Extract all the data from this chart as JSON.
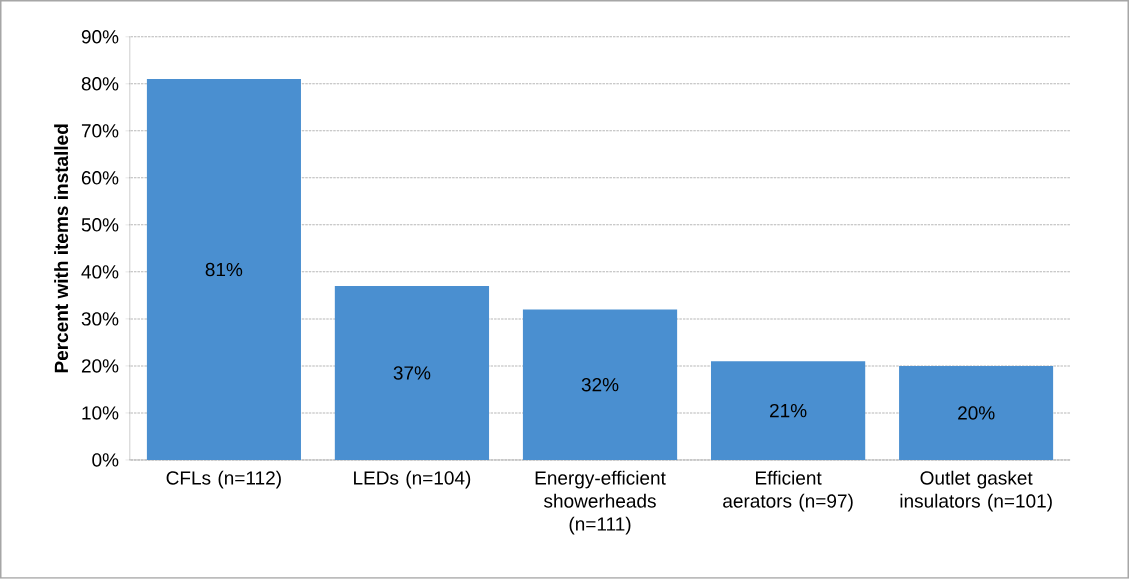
{
  "chart_data": {
    "type": "bar",
    "ylabel": "Percent with items installed",
    "categories": [
      "CFLs (n=112)",
      "LEDs (n=104)",
      "Energy-efficient showerheads (n=111)",
      "Efficient aerators (n=97)",
      "Outlet gasket insulators (n=101)"
    ],
    "values": [
      81,
      37,
      32,
      21,
      20
    ],
    "value_labels": [
      "81%",
      "37%",
      "32%",
      "21%",
      "20%"
    ],
    "color": "#4a8fd0",
    "ylim": [
      0,
      90
    ],
    "yticks": [
      {
        "value": 0,
        "label": "0%"
      },
      {
        "value": 10,
        "label": "10%"
      },
      {
        "value": 20,
        "label": "20%"
      },
      {
        "value": 30,
        "label": "30%"
      },
      {
        "value": 40,
        "label": "40%"
      },
      {
        "value": 50,
        "label": "50%"
      },
      {
        "value": 60,
        "label": "60%"
      },
      {
        "value": 70,
        "label": "70%"
      },
      {
        "value": 80,
        "label": "80%"
      },
      {
        "value": 90,
        "label": "90%"
      }
    ],
    "grid": "y"
  }
}
